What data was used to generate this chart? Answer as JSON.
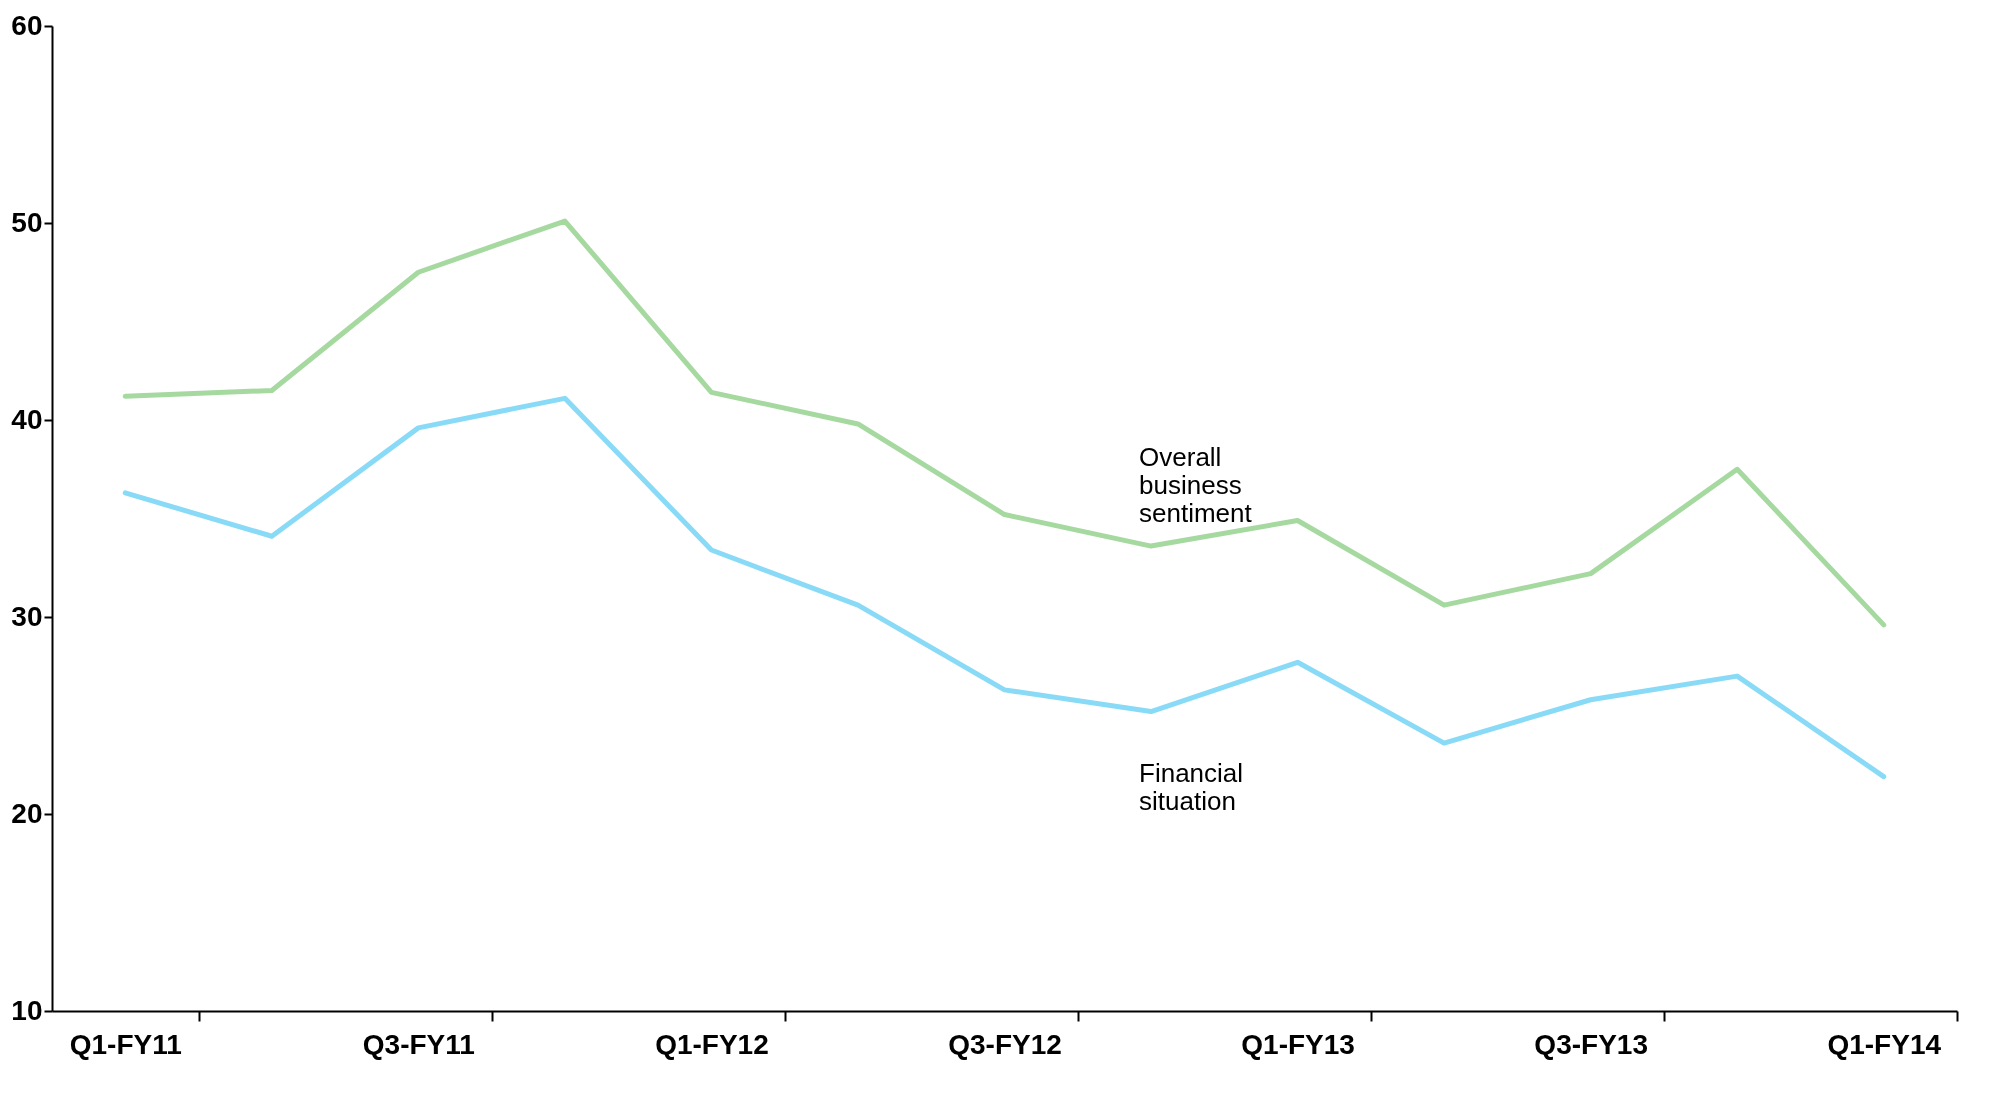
{
  "chart_data": {
    "type": "line",
    "categories": [
      "Q1-FY11",
      null,
      "Q3-FY11",
      null,
      "Q1-FY12",
      null,
      "Q3-FY12",
      null,
      "Q1-FY13",
      null,
      "Q3-FY13",
      null,
      "Q1-FY14"
    ],
    "series": [
      {
        "name": "Overall business sentiment",
        "color": "#a6d9a0",
        "values": [
          41.2,
          41.5,
          47.5,
          50.1,
          41.4,
          39.8,
          35.2,
          33.6,
          34.9,
          30.6,
          32.2,
          37.5,
          29.6
        ]
      },
      {
        "name": "Financial situation",
        "color": "#88daf7",
        "values": [
          36.3,
          34.1,
          39.6,
          41.1,
          33.4,
          30.6,
          26.3,
          25.2,
          27.7,
          23.6,
          25.8,
          27.0,
          21.9
        ]
      }
    ],
    "ylim": [
      10,
      60
    ],
    "yticks": [
      10,
      20,
      30,
      40,
      50,
      60
    ],
    "grid": false,
    "legend": false,
    "line_style": "solid",
    "marker": "none"
  }
}
